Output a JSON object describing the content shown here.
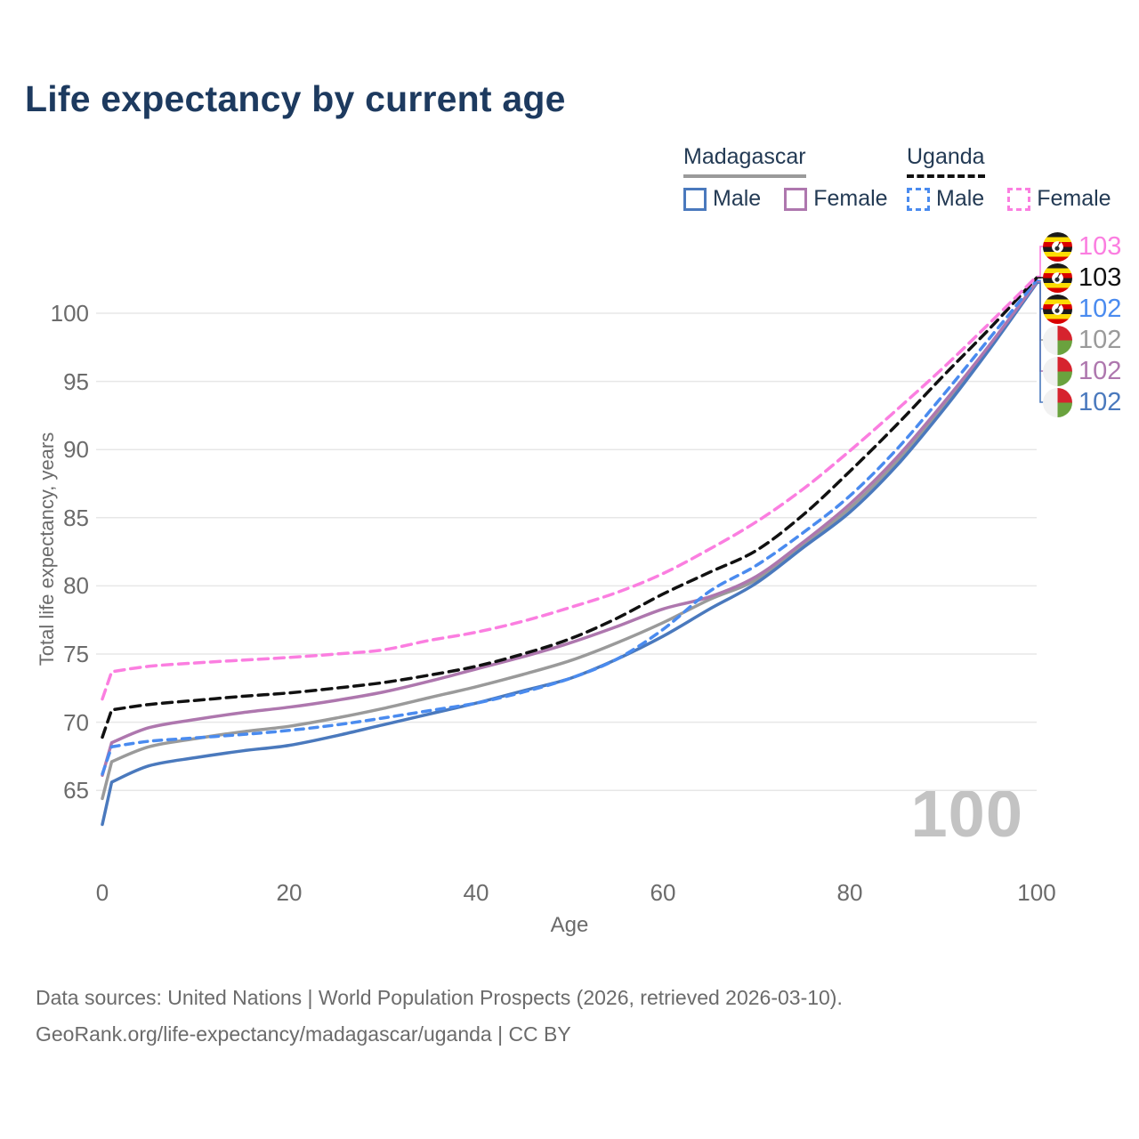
{
  "title": "Life expectancy by current age",
  "watermark": "100",
  "y_axis": {
    "label": "Total life expectancy, years",
    "ticks": [
      65,
      70,
      75,
      80,
      85,
      90,
      95,
      100
    ]
  },
  "x_axis": {
    "label": "Age",
    "ticks": [
      0,
      20,
      40,
      60,
      80,
      100
    ]
  },
  "legend": {
    "groups": [
      {
        "id": "madagascar",
        "label": "Madagascar",
        "line_style": "solid",
        "underline_color": "#9a9a9a",
        "items": [
          {
            "id": "male",
            "label": "Male",
            "color": "#4a79bd"
          },
          {
            "id": "female",
            "label": "Female",
            "color": "#ae77ae"
          }
        ]
      },
      {
        "id": "uganda",
        "label": "Uganda",
        "line_style": "dashed",
        "underline_color": "#111111",
        "items": [
          {
            "id": "male",
            "label": "Male",
            "color": "#4a8bef"
          },
          {
            "id": "female",
            "label": "Female",
            "color": "#fb7ee0"
          }
        ]
      }
    ]
  },
  "end_labels": [
    {
      "series": "uganda-female",
      "value": "103",
      "color": "#fb7ee0",
      "flag": "uganda"
    },
    {
      "series": "uganda-both",
      "value": "103",
      "color": "#111111",
      "flag": "uganda"
    },
    {
      "series": "uganda-male",
      "value": "102",
      "color": "#4a8bef",
      "flag": "uganda"
    },
    {
      "series": "madagascar-both",
      "value": "102",
      "color": "#9a9a9a",
      "flag": "madagascar"
    },
    {
      "series": "madagascar-female",
      "value": "102",
      "color": "#ae77ae",
      "flag": "madagascar"
    },
    {
      "series": "madagascar-male",
      "value": "102",
      "color": "#4a79bd",
      "flag": "madagascar"
    }
  ],
  "footer": {
    "line1": "Data sources: United Nations | World Population Prospects (2026, retrieved 2026-03-10).",
    "line2": "GeoRank.org/life-expectancy/madagascar/uganda | CC BY"
  },
  "chart_data": {
    "type": "line",
    "title": "Life expectancy by current age",
    "xlabel": "Age",
    "ylabel": "Total life expectancy, years",
    "xlim": [
      0,
      100
    ],
    "ylim": [
      62,
      103.5
    ],
    "grid": "horizontal",
    "legend_position": "top-right",
    "x": [
      0,
      1,
      5,
      10,
      15,
      20,
      25,
      30,
      35,
      40,
      45,
      50,
      55,
      60,
      65,
      70,
      75,
      80,
      85,
      90,
      95,
      100
    ],
    "series": [
      {
        "id": "uganda-female",
        "name": "Uganda Female",
        "country": "Uganda",
        "sex": "Female",
        "style": "dashed",
        "color": "#fb7ee0",
        "end_value_label": "103",
        "values": [
          71.7,
          73.7,
          74.1,
          74.35,
          74.55,
          74.75,
          75.0,
          75.3,
          76.0,
          76.6,
          77.4,
          78.4,
          79.5,
          80.9,
          82.7,
          84.7,
          87.1,
          89.9,
          92.9,
          96.0,
          99.3,
          102.7
        ]
      },
      {
        "id": "uganda-both",
        "name": "Uganda Both sexes",
        "country": "Uganda",
        "sex": "Both",
        "style": "dashed",
        "color": "#111111",
        "end_value_label": "103",
        "values": [
          68.9,
          70.9,
          71.3,
          71.6,
          71.9,
          72.15,
          72.5,
          72.9,
          73.45,
          74.1,
          75.0,
          76.1,
          77.6,
          79.4,
          81.0,
          82.6,
          85.2,
          88.4,
          91.8,
          95.4,
          98.9,
          102.6
        ]
      },
      {
        "id": "uganda-male",
        "name": "Uganda Male",
        "country": "Uganda",
        "sex": "Male",
        "style": "dashed",
        "color": "#4a8bef",
        "end_value_label": "102",
        "values": [
          66.2,
          68.2,
          68.6,
          68.85,
          69.1,
          69.4,
          69.8,
          70.3,
          70.85,
          71.4,
          72.2,
          73.2,
          74.6,
          76.8,
          79.6,
          81.5,
          83.9,
          86.6,
          90.0,
          94.0,
          98.2,
          102.4
        ]
      },
      {
        "id": "madagascar-both",
        "name": "Madagascar Both sexes",
        "country": "Madagascar",
        "sex": "Both",
        "style": "solid",
        "color": "#9a9a9a",
        "end_value_label": "102",
        "values": [
          64.4,
          67.1,
          68.2,
          68.8,
          69.3,
          69.7,
          70.3,
          71.0,
          71.8,
          72.6,
          73.5,
          74.5,
          75.8,
          77.3,
          79.0,
          80.45,
          83.0,
          85.7,
          89.1,
          93.2,
          97.6,
          102.25
        ]
      },
      {
        "id": "madagascar-female",
        "name": "Madagascar Female",
        "country": "Madagascar",
        "sex": "Female",
        "style": "solid",
        "color": "#ae77ae",
        "end_value_label": "102",
        "values": [
          66.1,
          68.5,
          69.6,
          70.2,
          70.7,
          71.1,
          71.6,
          72.2,
          73.0,
          73.9,
          74.8,
          75.8,
          77.0,
          78.3,
          79.2,
          80.7,
          83.2,
          86.0,
          89.4,
          93.4,
          97.7,
          102.3
        ]
      },
      {
        "id": "madagascar-male",
        "name": "Madagascar Male",
        "country": "Madagascar",
        "sex": "Male",
        "style": "solid",
        "color": "#4a79bd",
        "end_value_label": "102",
        "values": [
          62.5,
          65.6,
          66.8,
          67.4,
          67.9,
          68.3,
          69.0,
          69.8,
          70.6,
          71.4,
          72.3,
          73.2,
          74.6,
          76.3,
          78.3,
          80.2,
          82.8,
          85.4,
          88.8,
          92.9,
          97.4,
          102.2
        ]
      }
    ]
  }
}
